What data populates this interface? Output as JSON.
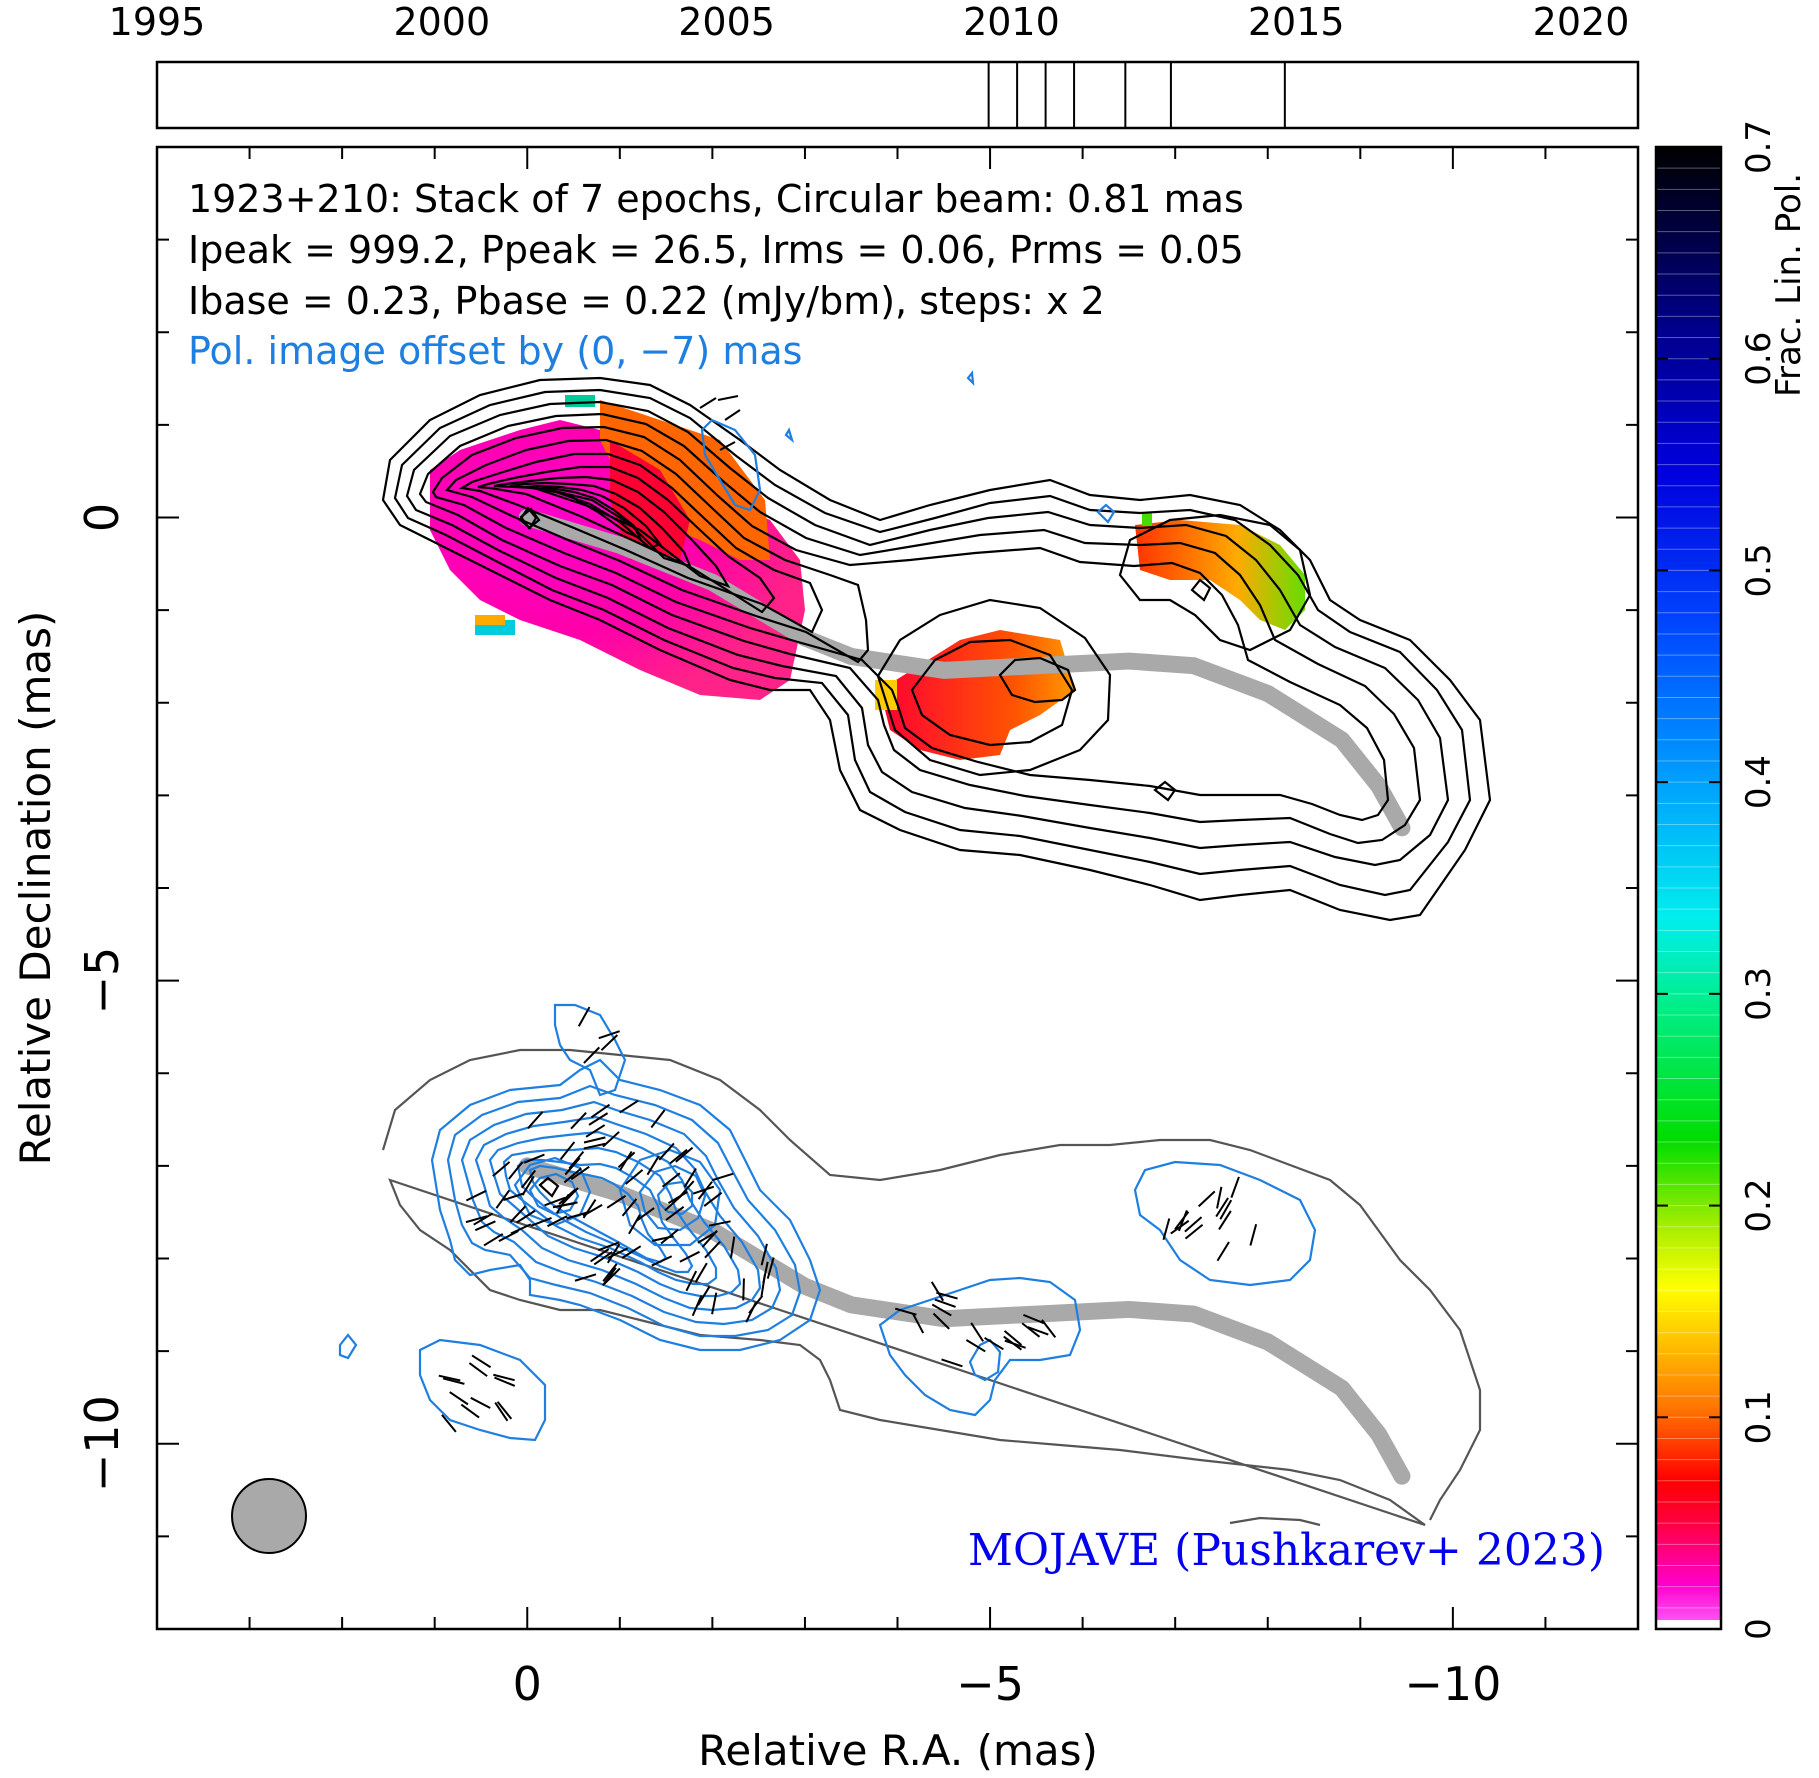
{
  "chart_data": {
    "type": "contour",
    "info_lines": [
      "1923+210: Stack of 7 epochs, Circular beam: 0.81 mas",
      "Ipeak = 999.2, Ppeak = 26.5, Irms = 0.06, Prms = 0.05",
      "Ibase = 0.23, Pbase = 0.22 (mJy/bm), steps: x 2"
    ],
    "offset_note": "Pol. image offset by (0, −7) mas",
    "credit": "MOJAVE (Pushkarev+ 2023)",
    "xlabel": "Relative R.A. (mas)",
    "ylabel": "Relative Declination (mas)",
    "xlim": [
      4,
      -12
    ],
    "ylim": [
      -12,
      4
    ],
    "x_ticks": [
      {
        "value": 0,
        "label": "0"
      },
      {
        "value": -5,
        "label": "−5"
      },
      {
        "value": -10,
        "label": "−10"
      }
    ],
    "y_ticks": [
      {
        "value": 0,
        "label": "0"
      },
      {
        "value": -5,
        "label": "−5"
      },
      {
        "value": -10,
        "label": "−10"
      }
    ],
    "timeline": {
      "range": [
        1995,
        2021
      ],
      "tick_labels": [
        "1995",
        "2000",
        "2005",
        "2010",
        "2015",
        "2020"
      ],
      "epochs": [
        2009.6,
        2010.1,
        2010.6,
        2011.1,
        2012.0,
        2012.8,
        2014.8
      ]
    },
    "colorbar": {
      "label": "Frac. Lin. Pol.",
      "range": [
        0,
        0.7
      ],
      "tick_labels": [
        "0",
        "0.1",
        "0.2",
        "0.3",
        "0.4",
        "0.5",
        "0.6",
        "0.7"
      ]
    },
    "beam_diameter_mas": 0.81,
    "ridgeline": [
      [
        0,
        0
      ],
      [
        -1,
        -0.3
      ],
      [
        -2,
        -0.7
      ],
      [
        -3,
        -1.3
      ],
      [
        -3.5,
        -1.5
      ],
      [
        -4.5,
        -1.65
      ],
      [
        -5.5,
        -1.6
      ],
      [
        -6.5,
        -1.55
      ],
      [
        -7.2,
        -1.6
      ],
      [
        -8,
        -1.9
      ],
      [
        -8.8,
        -2.4
      ],
      [
        -9.2,
        -2.9
      ],
      [
        -9.45,
        -3.35
      ]
    ]
  },
  "colors": {
    "axes": "#000000",
    "polarization_contours": "#1e7fe0",
    "credit": "#0000ee",
    "ridgeline": "#a9a9a9",
    "beam": "#a9a9a9"
  }
}
